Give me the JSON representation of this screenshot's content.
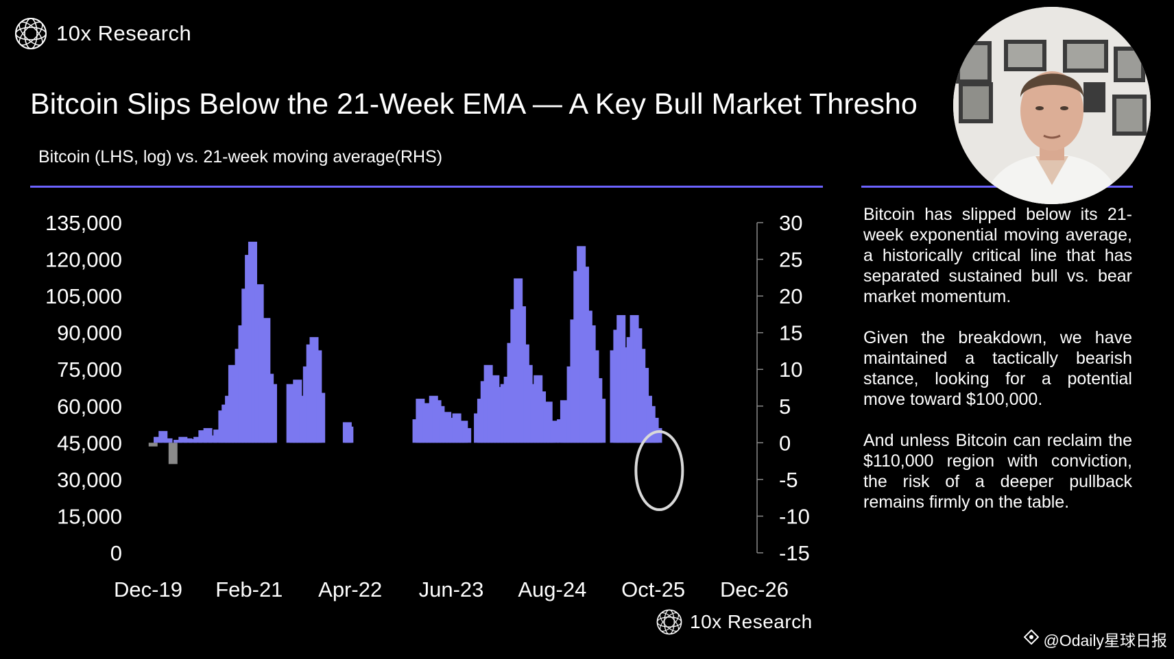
{
  "brand": {
    "name": "10x Research"
  },
  "title": "Bitcoin Slips Below the 21-Week EMA — A Key Bull Market Thresho",
  "subtitle": "Bitcoin (LHS, log) vs. 21-week moving average(RHS)",
  "commentary": {
    "paragraphs": [
      "Bitcoin has slipped below its 21-week exponential moving average, a historically critical line that has separated sustained bull vs. bear market momentum.",
      "Given the breakdown, we have maintained a tactically bearish stance, looking for a potential move toward $100,000.",
      "And unless Bitcoin can reclaim the $110,000 region with conviction, the risk of a deeper pullback remains firmly on the table."
    ]
  },
  "footer_brand": {
    "name": "10x Research"
  },
  "watermark": {
    "text": "@Odaily星球日报"
  },
  "colors": {
    "accent": "#6c63ff",
    "bar_positive": "#7b78f0",
    "bar_negative": "#8a8a8a",
    "background": "#000000",
    "highlight_ring": "#d9d9d9"
  },
  "icons": {
    "brand_logo": "globe-mesh-icon",
    "watermark_logo": "diamond-icon"
  },
  "chart_data": {
    "type": "bar",
    "title": "Bitcoin Slips Below the 21-Week EMA — A Key Bull Market Thresho",
    "subtitle": "Bitcoin (LHS, log) vs. 21-week moving average(RHS)",
    "left_axis": {
      "ticks": [
        "135,000",
        "120,000",
        "105,000",
        "90,000",
        "75,000",
        "60,000",
        "45,000",
        "30,000",
        "15,000",
        "0"
      ],
      "range": [
        0,
        135000
      ]
    },
    "right_axis": {
      "ticks": [
        "30",
        "25",
        "20",
        "15",
        "10",
        "5",
        "0",
        "-5",
        "-10",
        "-15"
      ],
      "range": [
        -15,
        30
      ]
    },
    "x_axis": {
      "ticks": [
        "Dec-19",
        "Feb-21",
        "Apr-22",
        "Jun-23",
        "Aug-24",
        "Oct-25",
        "Dec-26"
      ]
    },
    "series": [
      {
        "axis": "right",
        "x": [
          "2019-12-22",
          "2020-01-12",
          "2020-02-02",
          "2020-02-23",
          "2020-03-15",
          "2020-04-05",
          "2020-04-26",
          "2020-05-17",
          "2020-06-07",
          "2020-06-28",
          "2020-07-19",
          "2020-08-09",
          "2020-08-30",
          "2020-09-20",
          "2020-10-11",
          "2020-10-25",
          "2020-11-08",
          "2020-11-22",
          "2020-12-06",
          "2020-12-20",
          "2021-01-03",
          "2021-01-17",
          "2021-01-31",
          "2021-02-14",
          "2021-02-28",
          "2021-03-14",
          "2021-03-28",
          "2021-04-11",
          "2021-04-25",
          "2021-05-09",
          "2021-07-25",
          "2021-08-08",
          "2021-08-22",
          "2021-09-05",
          "2021-09-19",
          "2021-10-03",
          "2021-10-17",
          "2021-10-31",
          "2021-11-14",
          "2021-11-28",
          "2022-03-20",
          "2022-03-27",
          "2023-01-08",
          "2023-01-22",
          "2023-02-05",
          "2023-02-19",
          "2023-03-05",
          "2023-03-19",
          "2023-04-02",
          "2023-04-16",
          "2023-04-30",
          "2023-05-14",
          "2023-05-28",
          "2023-06-11",
          "2023-06-25",
          "2023-07-09",
          "2023-07-23",
          "2023-08-06",
          "2023-09-24",
          "2023-10-08",
          "2023-10-22",
          "2023-11-05",
          "2023-11-19",
          "2023-12-03",
          "2023-12-17",
          "2023-12-31",
          "2024-01-14",
          "2024-01-28",
          "2024-02-11",
          "2024-02-25",
          "2024-03-10",
          "2024-03-24",
          "2024-04-07",
          "2024-04-21",
          "2024-05-05",
          "2024-05-19",
          "2024-06-02",
          "2024-06-16",
          "2024-06-30",
          "2024-07-14",
          "2024-07-28",
          "2024-08-11",
          "2024-09-08",
          "2024-09-22",
          "2024-10-06",
          "2024-10-20",
          "2024-11-03",
          "2024-11-17",
          "2024-12-01",
          "2024-12-15",
          "2024-12-29",
          "2025-01-12",
          "2025-01-26",
          "2025-02-09",
          "2025-02-23",
          "2025-04-20",
          "2025-05-04",
          "2025-05-18",
          "2025-06-01",
          "2025-06-15",
          "2025-06-29",
          "2025-07-13",
          "2025-07-27",
          "2025-08-10",
          "2025-08-24",
          "2025-09-07",
          "2025-09-21",
          "2025-10-05",
          "2025-10-19"
        ],
        "values": [
          -0.5,
          0.8,
          1.6,
          0.6,
          -2.9,
          0.4,
          0.8,
          0.6,
          0.5,
          0.8,
          1.7,
          2.0,
          1.0,
          1.8,
          4.4,
          5.2,
          6.4,
          10.6,
          9.0,
          12.8,
          16.0,
          21.0,
          25.6,
          27.4,
          18.0,
          21.6,
          16.0,
          17.0,
          9.4,
          8.0,
          8.0,
          6.2,
          8.6,
          6.4,
          4.4,
          10.4,
          13.4,
          14.4,
          12.6,
          6.8,
          2.8,
          2.2,
          3.2,
          6.0,
          4.0,
          5.4,
          4.6,
          6.4,
          5.8,
          5.0,
          3.4,
          4.2,
          2.6,
          3.4,
          4.0,
          2.6,
          3.0,
          2.0,
          4.0,
          6.0,
          8.4,
          10.6,
          8.8,
          9.2,
          7.6,
          6.2,
          8.0,
          9.0,
          13.6,
          18.2,
          22.4,
          18.6,
          13.4,
          10.6,
          8.0,
          6.0,
          9.2,
          7.0,
          4.4,
          5.6,
          2.8,
          3.0,
          3.2,
          5.8,
          4.4,
          10.4,
          16.8,
          23.4,
          26.8,
          24.0,
          18.0,
          16.0,
          12.6,
          8.8,
          6.0,
          12.6,
          15.4,
          17.4,
          13.0,
          10.0,
          14.4,
          17.4,
          15.6,
          12.8,
          10.2,
          6.4,
          5.0,
          3.4,
          2.0
        ]
      }
    ],
    "annotations": [
      {
        "type": "ellipse",
        "x": "2025-10-26",
        "y": -3.8,
        "note": "highlight ring around latest values"
      }
    ]
  }
}
